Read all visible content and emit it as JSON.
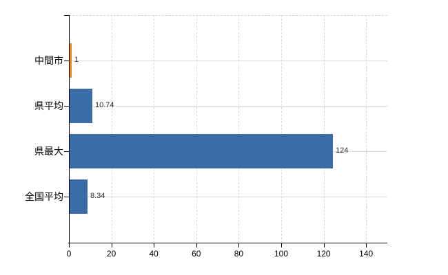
{
  "chart_data": {
    "type": "bar",
    "orientation": "horizontal",
    "title": "",
    "xlabel": "",
    "ylabel": "",
    "categories": [
      "中間市",
      "県平均",
      "県最大",
      "全国平均"
    ],
    "values": [
      1,
      10.74,
      124,
      8.34
    ],
    "value_labels": [
      "1",
      "10.74",
      "124",
      "8.34"
    ],
    "bar_colors": [
      "#ee8b1e",
      "#3b6ca6",
      "#3b6ca6",
      "#3b6ca6"
    ],
    "xlim": [
      0,
      150
    ],
    "x_ticks": [
      0,
      20,
      40,
      60,
      80,
      100,
      120,
      140
    ],
    "x_tick_labels": [
      "0",
      "20",
      "40",
      "60",
      "80",
      "100",
      "120",
      "140"
    ],
    "grid": true,
    "grid_vertical_style": "dashed",
    "grid_horizontal_style": "solid",
    "legend": false,
    "colors": {
      "bar_blue": "#3b6ca6",
      "bar_orange": "#ee8b1e",
      "axis": "#000000",
      "gridline": "#d9d9d9",
      "value_text": "#2b2b2b",
      "background": "#ffffff"
    }
  }
}
